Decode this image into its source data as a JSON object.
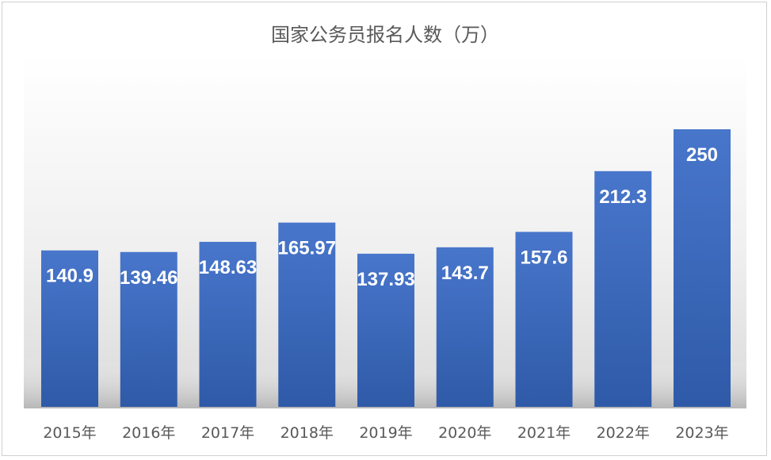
{
  "chart_data": {
    "type": "bar",
    "title": "国家公务员报名人数（万）",
    "categories": [
      "2015年",
      "2016年",
      "2017年",
      "2018年",
      "2019年",
      "2020年",
      "2021年",
      "2022年",
      "2023年"
    ],
    "values": [
      140.9,
      139.46,
      148.63,
      165.97,
      137.93,
      143.7,
      157.6,
      212.3,
      250
    ],
    "data_labels": [
      "140.9",
      "139.46",
      "148.63",
      "165.97",
      "137.93",
      "143.7",
      "157.6",
      "212.3",
      "250"
    ],
    "xlabel": "",
    "ylabel": "",
    "ylim": [
      0,
      270
    ],
    "grid": false,
    "legend": "none",
    "colors": {
      "bar_top": "#4876CB",
      "bar_bottom": "#2F5AA8",
      "title": "#595959",
      "tick": "#595959",
      "data_label": "#ffffff"
    }
  }
}
